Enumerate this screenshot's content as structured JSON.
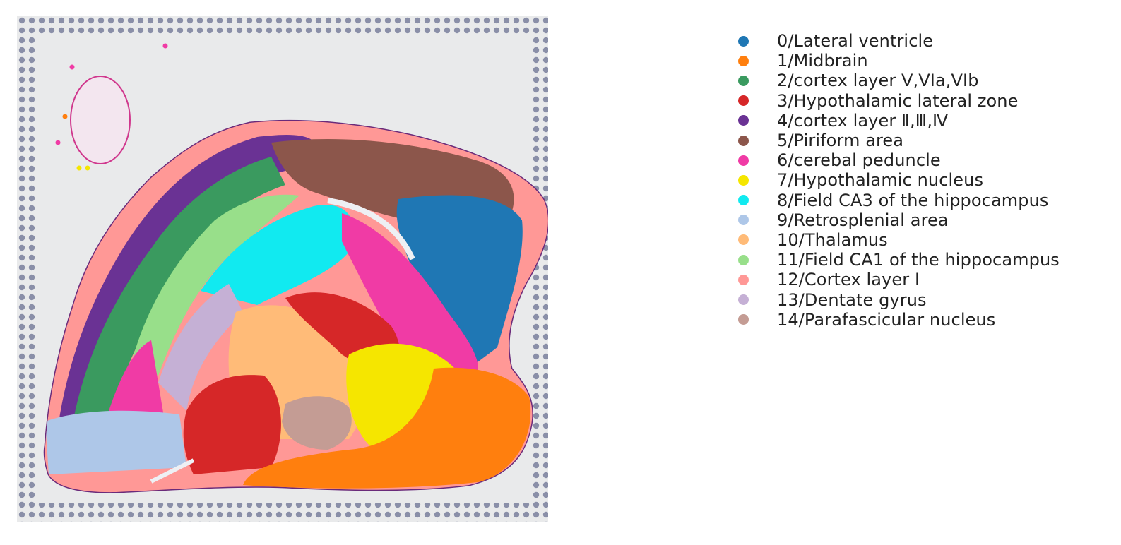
{
  "legend": {
    "items": [
      {
        "label": "0/Lateral ventricle",
        "color": "#1f77b4"
      },
      {
        "label": "1/Midbrain",
        "color": "#ff7f0e"
      },
      {
        "label": "2/cortex layer V,VIa,VIb",
        "color": "#3a9a5f"
      },
      {
        "label": "3/Hypothalamic lateral zone",
        "color": "#d62728"
      },
      {
        "label": "4/cortex layer Ⅱ,Ⅲ,Ⅳ",
        "color": "#6a3294"
      },
      {
        "label": "5/Piriform area",
        "color": "#8c564b"
      },
      {
        "label": "6/cerebal peduncle",
        "color": "#f03ba5"
      },
      {
        "label": "7/Hypothalamic nucleus",
        "color": "#f5e600"
      },
      {
        "label": "8/Field CA3 of the hippocampus",
        "color": "#11eaf0"
      },
      {
        "label": "9/Retrosplenial area",
        "color": "#aec7e8"
      },
      {
        "label": "10/Thalamus",
        "color": "#ffbb78"
      },
      {
        "label": "11/Field CA1 of the hippocampus",
        "color": "#98df8a"
      },
      {
        "label": "12/Cortex layer I",
        "color": "#ff9896"
      },
      {
        "label": "13/Dentate gyrus",
        "color": "#c5b0d5"
      },
      {
        "label": "14/Parafascicular nucleus",
        "color": "#c49c94"
      }
    ]
  }
}
